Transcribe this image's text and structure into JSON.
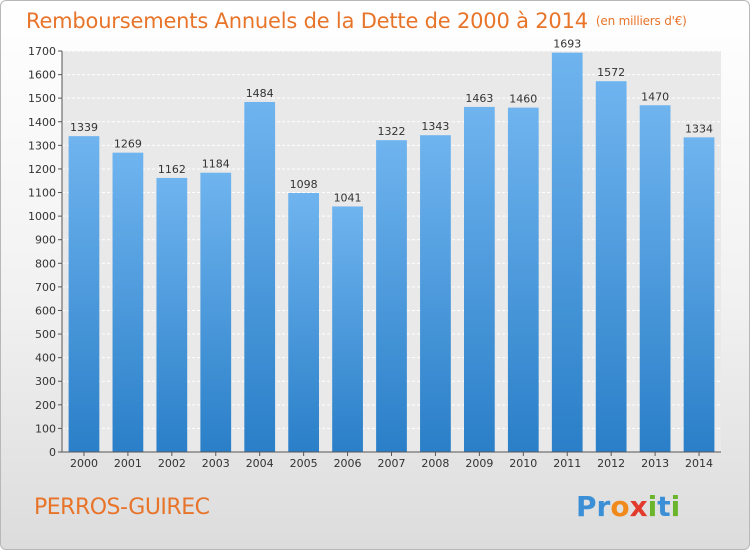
{
  "title": "Remboursements Annuels de la Dette de 2000 à 2014",
  "subtitle": "(en milliers d'€)",
  "town": "PERROS-GUIREC",
  "logo": {
    "letters": [
      "P",
      "r",
      "o",
      "x",
      "i",
      "t",
      "i"
    ],
    "colors": [
      "#3a8fd6",
      "#3a8fd6",
      "#f08a1c",
      "#e23b2e",
      "#6ab52c",
      "#3a8fd6",
      "#6ab52c"
    ]
  },
  "colors": {
    "bar_light": "#6fb4ef",
    "bar_dark": "#2a7fc8",
    "title": "#e8742a"
  },
  "chart_data": {
    "type": "bar",
    "title": "Remboursements Annuels de la Dette de 2000 à 2014",
    "subtitle": "(en milliers d'€)",
    "categories": [
      "2000",
      "2001",
      "2002",
      "2003",
      "2004",
      "2005",
      "2006",
      "2007",
      "2008",
      "2009",
      "2010",
      "2011",
      "2012",
      "2013",
      "2014"
    ],
    "values": [
      1339,
      1269,
      1162,
      1184,
      1484,
      1098,
      1041,
      1322,
      1343,
      1463,
      1460,
      1693,
      1572,
      1470,
      1334
    ],
    "ylim": [
      0,
      1700
    ],
    "yticks": [
      0,
      100,
      200,
      300,
      400,
      500,
      600,
      700,
      800,
      900,
      1000,
      1100,
      1200,
      1300,
      1400,
      1500,
      1600,
      1700
    ],
    "grid": true
  }
}
